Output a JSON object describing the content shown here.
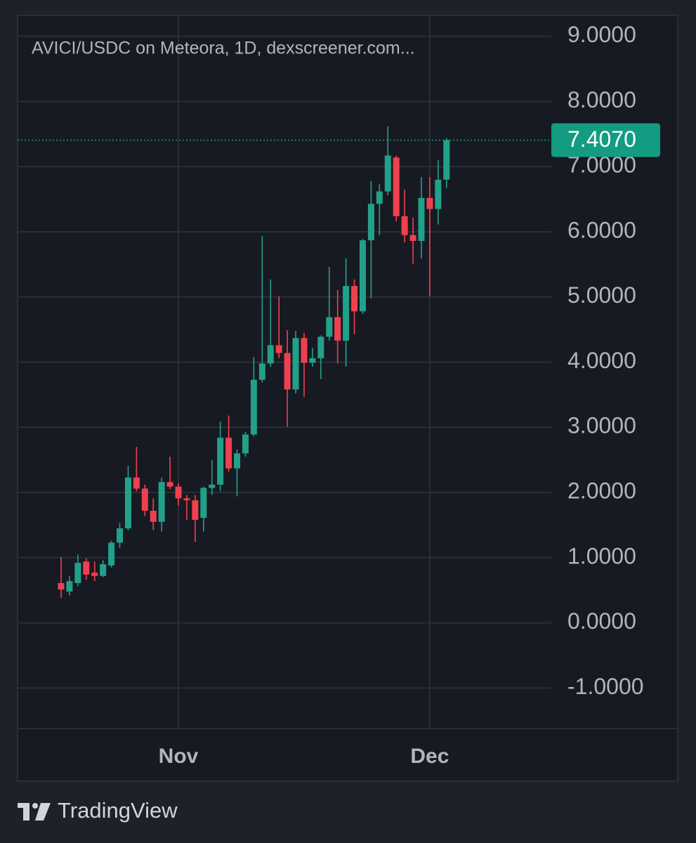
{
  "chart_data": {
    "type": "candlestick",
    "title": "AVICI/USDC on Meteora, 1D, dexscreener.com...",
    "categories": [
      null,
      null,
      null,
      null,
      null,
      null,
      null,
      null,
      null,
      null,
      null,
      null,
      null,
      null,
      "Nov",
      null,
      null,
      null,
      null,
      null,
      null,
      null,
      null,
      null,
      null,
      null,
      null,
      null,
      null,
      null,
      null,
      null,
      null,
      null,
      null,
      null,
      null,
      null,
      null,
      null,
      null,
      null,
      null,
      null,
      "Dec",
      null,
      null
    ],
    "open": [
      0.61,
      0.48,
      0.61,
      0.94,
      0.77,
      0.72,
      0.88,
      1.23,
      1.45,
      2.23,
      2.06,
      1.72,
      1.55,
      2.16,
      2.09,
      1.91,
      1.88,
      1.61,
      2.07,
      2.12,
      2.84,
      2.37,
      2.6,
      2.89,
      3.73,
      3.98,
      4.26,
      4.14,
      3.58,
      4.37,
      3.99,
      4.06,
      4.39,
      4.69,
      4.33,
      5.17,
      4.78,
      5.87,
      6.43,
      6.62,
      7.14,
      6.24,
      5.95,
      5.86,
      6.52,
      6.35,
      6.8
    ],
    "high": [
      1.01,
      0.72,
      1.05,
      0.99,
      0.94,
      0.96,
      1.26,
      1.53,
      2.41,
      2.7,
      2.12,
      1.91,
      2.23,
      2.55,
      2.14,
      1.96,
      1.96,
      2.09,
      2.5,
      3.09,
      3.18,
      2.66,
      2.93,
      4.08,
      5.94,
      5.27,
      5.01,
      4.49,
      4.48,
      4.45,
      4.22,
      4.41,
      5.46,
      5.11,
      5.59,
      5.27,
      5.89,
      6.78,
      6.73,
      7.62,
      7.17,
      6.65,
      6.22,
      6.84,
      6.84,
      7.1,
      7.44
    ],
    "low": [
      0.38,
      0.42,
      0.56,
      0.66,
      0.64,
      0.7,
      0.85,
      1.15,
      1.42,
      2.02,
      1.64,
      1.42,
      1.4,
      2.05,
      1.8,
      1.58,
      1.24,
      1.4,
      1.96,
      2.02,
      2.32,
      1.94,
      2.55,
      2.86,
      3.69,
      3.93,
      4.06,
      3.01,
      3.52,
      3.47,
      3.93,
      3.74,
      4.33,
      3.98,
      3.93,
      4.43,
      4.74,
      4.98,
      5.95,
      6.56,
      6.16,
      5.84,
      5.51,
      5.59,
      5.01,
      6.11,
      6.67
    ],
    "close": [
      0.51,
      0.64,
      0.92,
      0.74,
      0.72,
      0.9,
      1.23,
      1.45,
      2.23,
      2.06,
      1.72,
      1.55,
      2.16,
      2.09,
      1.91,
      1.88,
      1.58,
      2.07,
      2.12,
      2.84,
      2.37,
      2.6,
      2.89,
      3.73,
      3.98,
      4.26,
      4.14,
      3.58,
      4.37,
      3.99,
      4.06,
      4.39,
      4.69,
      4.33,
      5.17,
      4.78,
      5.87,
      6.43,
      6.62,
      7.17,
      6.24,
      5.95,
      5.86,
      6.52,
      6.35,
      6.8,
      7.407
    ],
    "up_color": "#22a08a",
    "down_color": "#f0404f",
    "last_price": {
      "value": 7.407,
      "label": "7.4070"
    },
    "last_price_color": "#139c81",
    "ylim": [
      -1.6,
      9.32
    ],
    "yticks": [
      {
        "value": -1,
        "label": "-1.0000"
      },
      {
        "value": 0,
        "label": "0.0000"
      },
      {
        "value": 1,
        "label": "1.0000"
      },
      {
        "value": 2,
        "label": "2.0000"
      },
      {
        "value": 3,
        "label": "3.0000"
      },
      {
        "value": 4,
        "label": "4.0000"
      },
      {
        "value": 5,
        "label": "5.0000"
      },
      {
        "value": 6,
        "label": "6.0000"
      },
      {
        "value": 7,
        "label": "7.0000"
      },
      {
        "value": 8,
        "label": "8.0000"
      },
      {
        "value": 9,
        "label": "9.0000"
      }
    ],
    "grid": true
  },
  "footer": {
    "brand": "TradingView"
  }
}
